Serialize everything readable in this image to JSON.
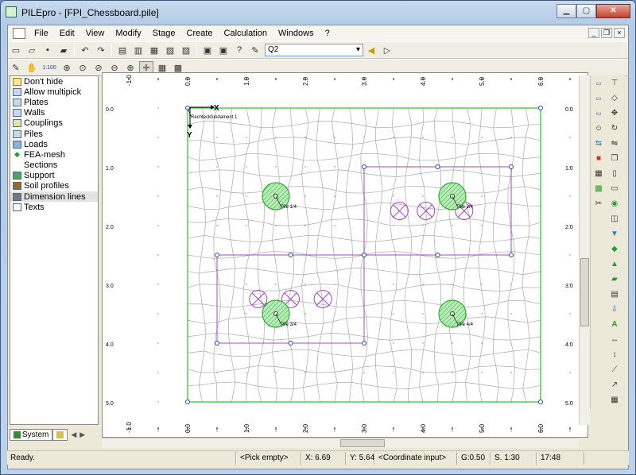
{
  "window": {
    "title": "PILEpro - [FPI_Chessboard.pile]"
  },
  "menu": [
    "File",
    "Edit",
    "View",
    "Modify",
    "Stage",
    "Create",
    "Calculation",
    "Windows",
    "?"
  ],
  "toolbar": {
    "stage_value": "Q2",
    "scale_label": "1:100"
  },
  "layers": [
    {
      "label": "Don't hide",
      "icon": "eye-icon"
    },
    {
      "label": "Allow multipick",
      "icon": "multipick-icon"
    },
    {
      "label": "Plates",
      "icon": "plate-icon"
    },
    {
      "label": "Walls",
      "icon": "wall-icon"
    },
    {
      "label": "Couplings",
      "icon": "coupling-icon"
    },
    {
      "label": "Piles",
      "icon": "pile-icon"
    },
    {
      "label": "Loads",
      "icon": "load-icon"
    },
    {
      "label": "FEA-mesh",
      "icon": "mesh-icon"
    },
    {
      "label": "Sections",
      "icon": "section-icon"
    },
    {
      "label": "Support",
      "icon": "support-icon"
    },
    {
      "label": "Soil profiles",
      "icon": "soil-icon"
    },
    {
      "label": "Dimension lines",
      "icon": "dimension-icon"
    },
    {
      "label": "Texts",
      "icon": "text-icon"
    }
  ],
  "left_tabs": {
    "system": "System"
  },
  "canvas": {
    "x_ruler": [
      "-1.0",
      "0.0",
      "1.0",
      "2.0",
      "3.0",
      "4.0",
      "5.0",
      "6.0"
    ],
    "y_ruler_left": [
      "0.0",
      "1.0",
      "2.0",
      "3.0",
      "4.0",
      "5.0"
    ],
    "y_ruler_right": [
      "0.0",
      "1.0",
      "2.0",
      "3.0",
      "4.0",
      "5.0"
    ],
    "axis_x": "X",
    "axis_y": "Y",
    "plate_label": "Rechteckfundament 1",
    "piles": [
      {
        "label": "Pile 1/4"
      },
      {
        "label": "Pile 2/4"
      },
      {
        "label": "Pile 3/4"
      },
      {
        "label": "Pile 4/4"
      }
    ],
    "colors": {
      "plate": "#33cc33",
      "pile": "#33aa33",
      "loads": "#aa44cc",
      "mesh": "#b4b4b4",
      "nodes": "#2244bb"
    }
  },
  "status": {
    "ready": "Ready.",
    "pick": "<Pick empty>",
    "x": "X: 6.69",
    "y": "Y: 5.64",
    "input": "<Coordinate input>",
    "grid": "G:0.50",
    "scale": "S. 1:30",
    "time": "17:48"
  }
}
